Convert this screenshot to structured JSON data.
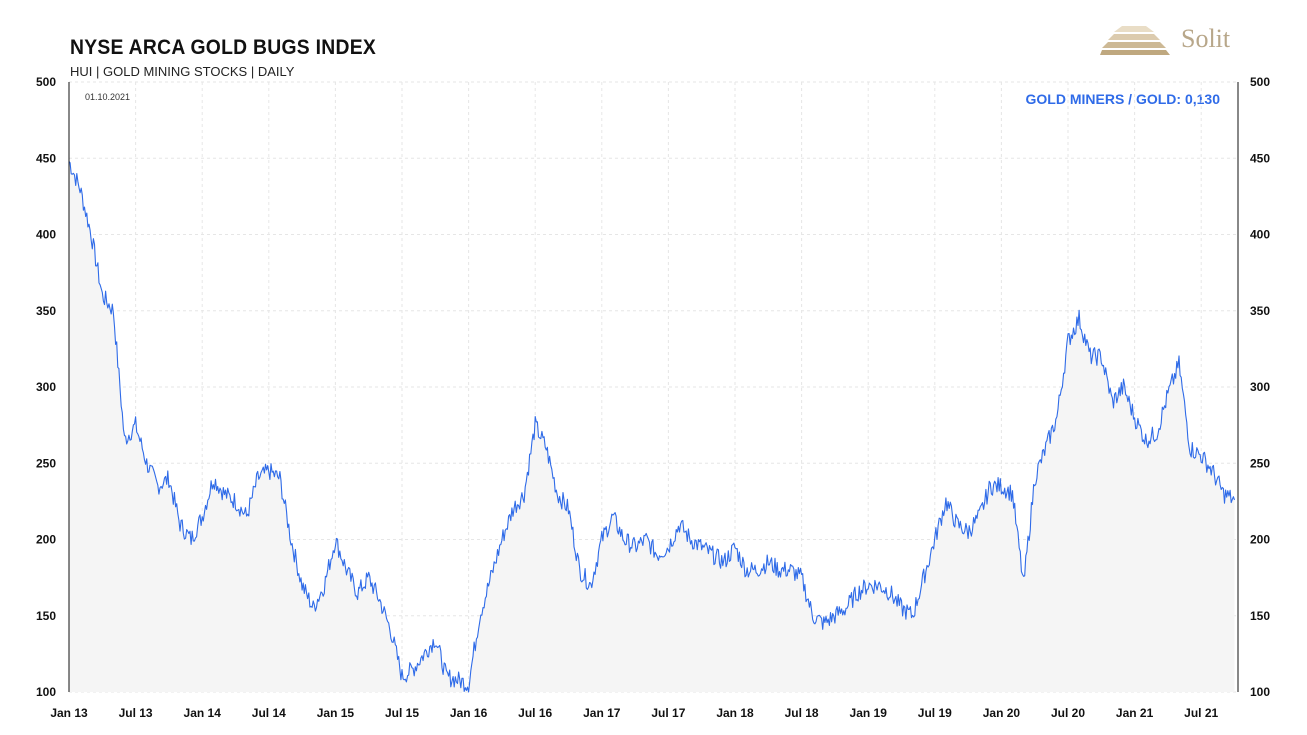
{
  "header": {
    "title": "NYSE ARCA GOLD BUGS INDEX",
    "subtitle": "HUI | GOLD MINING STOCKS | DAILY",
    "date": "01.10.2021",
    "ratio_label": "GOLD MINERS / GOLD: 0,130"
  },
  "logo": {
    "text": "Solit",
    "color": "#b8a78a"
  },
  "colors": {
    "line": "#2f6be8",
    "area": "#f5f5f5",
    "grid": "#e6e6e6",
    "axis": "#111111"
  },
  "chart_data": {
    "type": "line",
    "title": "NYSE ARCA GOLD BUGS INDEX",
    "subtitle": "HUI | GOLD MINING STOCKS | DAILY",
    "xlabel": "",
    "ylabel": "",
    "ylim": [
      100,
      500
    ],
    "yticks": [
      "100",
      "150",
      "200",
      "250",
      "300",
      "350",
      "400",
      "450",
      "500"
    ],
    "xticks": [
      "Jan 13",
      "Jul 13",
      "Jan 14",
      "Jul 14",
      "Jan 15",
      "Jul 15",
      "Jan 16",
      "Jul 16",
      "Jan 17",
      "Jul 17",
      "Jan 18",
      "Jul 18",
      "Jan 19",
      "Jul 19",
      "Jan 20",
      "Jul 20",
      "Jan 21",
      "Jul 21"
    ],
    "grid": true,
    "y_axes": "both",
    "x": [
      "2013-01",
      "2013-02",
      "2013-03",
      "2013-04",
      "2013-05",
      "2013-06",
      "2013-07",
      "2013-08",
      "2013-09",
      "2013-10",
      "2013-11",
      "2013-12",
      "2014-01",
      "2014-02",
      "2014-03",
      "2014-04",
      "2014-05",
      "2014-06",
      "2014-07",
      "2014-08",
      "2014-09",
      "2014-10",
      "2014-11",
      "2014-12",
      "2015-01",
      "2015-02",
      "2015-03",
      "2015-04",
      "2015-05",
      "2015-06",
      "2015-07",
      "2015-08",
      "2015-09",
      "2015-10",
      "2015-11",
      "2015-12",
      "2016-01",
      "2016-02",
      "2016-03",
      "2016-04",
      "2016-05",
      "2016-06",
      "2016-07",
      "2016-08",
      "2016-09",
      "2016-10",
      "2016-11",
      "2016-12",
      "2017-01",
      "2017-02",
      "2017-03",
      "2017-04",
      "2017-05",
      "2017-06",
      "2017-07",
      "2017-08",
      "2017-09",
      "2017-10",
      "2017-11",
      "2017-12",
      "2018-01",
      "2018-02",
      "2018-03",
      "2018-04",
      "2018-05",
      "2018-06",
      "2018-07",
      "2018-08",
      "2018-09",
      "2018-10",
      "2018-11",
      "2018-12",
      "2019-01",
      "2019-02",
      "2019-03",
      "2019-04",
      "2019-05",
      "2019-06",
      "2019-07",
      "2019-08",
      "2019-09",
      "2019-10",
      "2019-11",
      "2019-12",
      "2020-01",
      "2020-02",
      "2020-03",
      "2020-04",
      "2020-05",
      "2020-06",
      "2020-07",
      "2020-08",
      "2020-09",
      "2020-10",
      "2020-11",
      "2020-12",
      "2021-01",
      "2021-02",
      "2021-03",
      "2021-04",
      "2021-05",
      "2021-06",
      "2021-07",
      "2021-08",
      "2021-09",
      "2021-10"
    ],
    "series": [
      {
        "values": [
          448,
          430,
          400,
          360,
          350,
          265,
          275,
          250,
          235,
          240,
          210,
          200,
          215,
          240,
          230,
          225,
          215,
          240,
          245,
          240,
          200,
          170,
          155,
          170,
          200,
          180,
          165,
          175,
          160,
          140,
          110,
          115,
          125,
          135,
          110,
          108,
          105,
          150,
          175,
          200,
          220,
          230,
          275,
          260,
          230,
          220,
          180,
          170,
          200,
          215,
          200,
          195,
          200,
          190,
          195,
          210,
          200,
          195,
          190,
          185,
          195,
          180,
          180,
          185,
          180,
          180,
          175,
          150,
          145,
          150,
          155,
          165,
          170,
          170,
          165,
          155,
          150,
          175,
          200,
          225,
          210,
          205,
          215,
          235,
          235,
          230,
          170,
          240,
          260,
          280,
          330,
          345,
          320,
          320,
          290,
          300,
          280,
          265,
          270,
          295,
          315,
          260,
          255,
          245,
          230,
          226
        ]
      }
    ]
  }
}
